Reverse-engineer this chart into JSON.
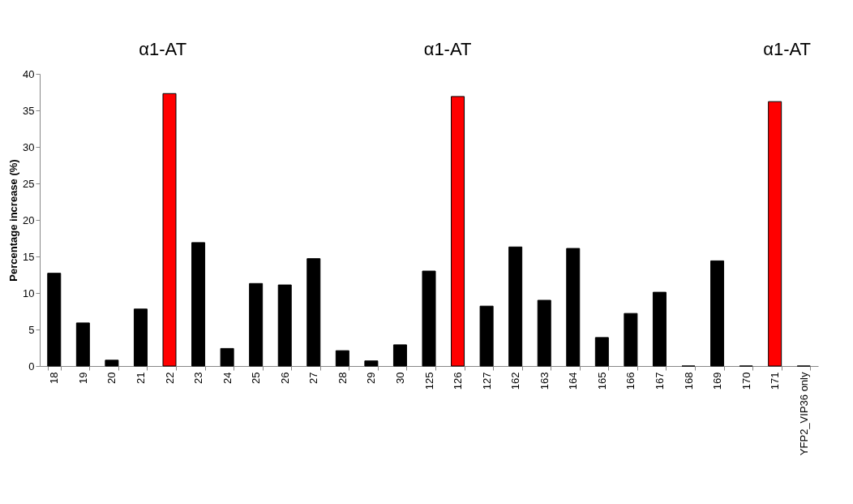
{
  "chart_data": {
    "type": "bar",
    "ylabel": "Percentage increase (%)",
    "categories": [
      "18",
      "19",
      "20",
      "21",
      "22",
      "23",
      "24",
      "25",
      "26",
      "27",
      "28",
      "29",
      "30",
      "125",
      "126",
      "127",
      "162",
      "163",
      "164",
      "165",
      "166",
      "167",
      "168",
      "169",
      "170",
      "171",
      "YFP2_VIP36 only"
    ],
    "values": [
      12.7,
      5.9,
      0.8,
      7.8,
      37.3,
      16.9,
      2.4,
      11.3,
      11.1,
      14.7,
      2.1,
      0.7,
      2.9,
      13.0,
      36.9,
      8.2,
      16.3,
      9.0,
      16.1,
      3.9,
      7.2,
      10.1,
      0,
      14.4,
      0,
      36.2,
      0
    ],
    "colors": [
      "#000000",
      "#000000",
      "#000000",
      "#000000",
      "#ff0000",
      "#000000",
      "#000000",
      "#000000",
      "#000000",
      "#000000",
      "#000000",
      "#000000",
      "#000000",
      "#000000",
      "#ff0000",
      "#000000",
      "#000000",
      "#000000",
      "#000000",
      "#000000",
      "#000000",
      "#000000",
      "#000000",
      "#000000",
      "#000000",
      "#ff0000",
      "#000000"
    ],
    "ylim": [
      0,
      40
    ],
    "yticks": [
      0,
      5,
      10,
      15,
      20,
      25,
      30,
      35,
      40
    ],
    "grid": false,
    "annotations": [
      "α1-AT",
      "α1-AT",
      "α1-AT"
    ]
  }
}
